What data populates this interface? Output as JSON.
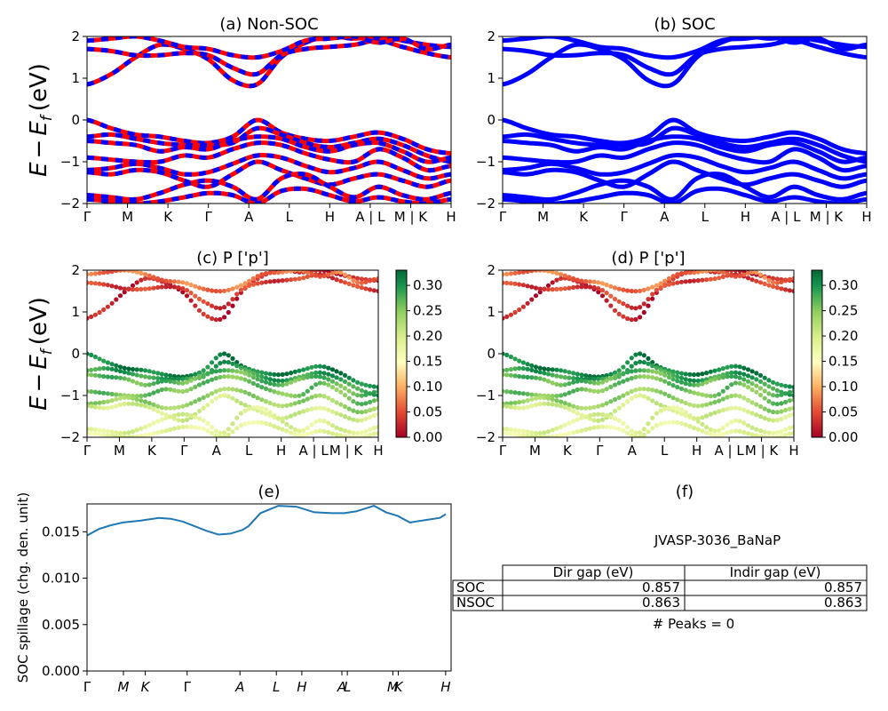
{
  "chart_data": [
    {
      "id": "a",
      "type": "line",
      "title": "(a) Non-SOC",
      "ylabel_parts": [
        "E",
        "−",
        "E",
        "f",
        "(eV)"
      ],
      "ylim": [
        -2,
        2
      ],
      "yticks": [
        "2",
        "1",
        "0",
        "−1",
        "−2"
      ],
      "xticks": [
        "Γ",
        "M",
        "K",
        "Γ",
        "A",
        "L",
        "H",
        "A | L",
        "M | K",
        "H"
      ],
      "series_colors": [
        "#ff0000",
        "#0000ff"
      ],
      "bands": [
        {
          "y": [
            0.85,
            1.1,
            1.5,
            1.8,
            1.7,
            1.45,
            0.95,
            0.85,
            1.5,
            1.85,
            2.0,
            1.95,
            2.0,
            1.9,
            1.8,
            1.75
          ]
        },
        {
          "y": [
            1.7,
            1.65,
            1.55,
            1.55,
            1.6,
            1.55,
            1.25,
            1.1,
            1.55,
            1.7,
            1.75,
            1.8,
            1.9,
            1.75,
            1.6,
            1.5
          ]
        },
        {
          "y": [
            1.9,
            1.95,
            2.0,
            1.9,
            1.75,
            1.7,
            1.55,
            1.5,
            1.65,
            1.9,
            1.95,
            2.0,
            1.85,
            1.95,
            1.7,
            1.8
          ]
        },
        {
          "y": [
            0.0,
            -0.2,
            -0.35,
            -0.4,
            -0.5,
            -0.55,
            -0.4,
            0.0,
            -0.3,
            -0.45,
            -0.5,
            -0.4,
            -0.3,
            -0.45,
            -0.7,
            -0.8
          ]
        },
        {
          "y": [
            -0.4,
            -0.35,
            -0.45,
            -0.55,
            -0.6,
            -0.6,
            -0.55,
            -0.2,
            -0.35,
            -0.55,
            -0.65,
            -0.55,
            -0.45,
            -0.6,
            -0.85,
            -1.0
          ]
        },
        {
          "y": [
            -0.5,
            -0.55,
            -0.6,
            -0.75,
            -0.65,
            -0.7,
            -0.5,
            -0.4,
            -0.45,
            -0.65,
            -0.75,
            -0.6,
            -0.55,
            -0.75,
            -1.0,
            -0.9
          ]
        },
        {
          "y": [
            -0.9,
            -0.95,
            -1.0,
            -1.0,
            -0.85,
            -0.9,
            -0.7,
            -0.55,
            -0.6,
            -0.8,
            -0.95,
            -1.0,
            -0.7,
            -0.9,
            -1.2,
            -1.1
          ]
        },
        {
          "y": [
            -1.2,
            -1.15,
            -1.05,
            -1.15,
            -1.3,
            -1.25,
            -1.05,
            -0.85,
            -0.9,
            -1.1,
            -1.25,
            -1.15,
            -1.0,
            -1.2,
            -1.4,
            -1.3
          ]
        },
        {
          "y": [
            -1.25,
            -1.3,
            -1.2,
            -1.25,
            -1.45,
            -1.6,
            -1.3,
            -1.0,
            -1.2,
            -1.4,
            -1.55,
            -1.4,
            -1.3,
            -1.45,
            -1.6,
            -1.45
          ]
        },
        {
          "y": [
            -1.8,
            -1.85,
            -1.9,
            -1.75,
            -1.55,
            -1.45,
            -1.6,
            -1.9,
            -1.4,
            -1.3,
            -1.6,
            -1.85,
            -1.6,
            -1.8,
            -1.9,
            -1.75
          ]
        },
        {
          "y": [
            -1.9,
            -1.95,
            -2.0,
            -1.95,
            -1.85,
            -1.75,
            -1.8,
            -2.0,
            -1.7,
            -1.65,
            -1.8,
            -1.95,
            -1.85,
            -1.95,
            -2.0,
            -1.9
          ]
        }
      ]
    },
    {
      "id": "b",
      "type": "line",
      "title": "(b) SOC",
      "ylim": [
        -2,
        2
      ],
      "yticks": [
        "2",
        "1",
        "0",
        "−1",
        "−2"
      ],
      "xticks": [
        "Γ",
        "M",
        "K",
        "Γ",
        "A",
        "L",
        "H",
        "A | L",
        "M | K",
        "H"
      ],
      "series_colors": [
        "#0000ff"
      ]
    },
    {
      "id": "c",
      "type": "scatter",
      "title": "(c)  P ['p']",
      "ylabel_parts": [
        "E",
        "−",
        "E",
        "f",
        "(eV)"
      ],
      "ylim": [
        -2,
        2
      ],
      "yticks": [
        "2",
        "1",
        "0",
        "−1",
        "−2"
      ],
      "xticks": [
        "Γ",
        "M",
        "K",
        "Γ",
        "A",
        "L",
        "H",
        "A | L",
        "M | K",
        "H"
      ],
      "colorbar": {
        "ticks": [
          "0.30",
          "0.25",
          "0.20",
          "0.15",
          "0.10",
          "0.05",
          "0.00"
        ],
        "range": [
          0,
          0.33
        ],
        "colormap": "RdYlGn"
      },
      "band_weights": [
        0.02,
        0.04,
        0.07,
        0.31,
        0.29,
        0.27,
        0.26,
        0.24,
        0.2,
        0.19,
        0.18
      ]
    },
    {
      "id": "d",
      "type": "scatter",
      "title": "(d) P ['p']",
      "ylim": [
        -2,
        2
      ],
      "yticks": [
        "2",
        "1",
        "0",
        "−1",
        "−2"
      ],
      "xticks": [
        "Γ",
        "M",
        "K",
        "Γ",
        "A",
        "L",
        "H",
        "A | L",
        "M | K",
        "H"
      ],
      "colorbar": {
        "ticks": [
          "0.30",
          "0.25",
          "0.20",
          "0.15",
          "0.10",
          "0.05",
          "0.00"
        ],
        "range": [
          0,
          0.33
        ],
        "colormap": "RdYlGn"
      },
      "band_weights": [
        0.02,
        0.04,
        0.07,
        0.31,
        0.29,
        0.27,
        0.26,
        0.24,
        0.2,
        0.19,
        0.18
      ]
    },
    {
      "id": "e",
      "type": "line",
      "title": "(e)",
      "ylabel": "SOC spillage (chg. den. unit)",
      "ylim": [
        0,
        0.018
      ],
      "yticks": [
        "0.000",
        "0.005",
        "0.010",
        "0.015"
      ],
      "xticks": [
        "Γ",
        "M",
        "K",
        "Γ",
        "A",
        "L",
        "H",
        "A",
        "L",
        "M",
        "K",
        "H"
      ],
      "line_color": "#1f77b4",
      "x": [
        0,
        2,
        4,
        6,
        9,
        12,
        14,
        16,
        18,
        20,
        22,
        24,
        26,
        27,
        29,
        32,
        35,
        38,
        41,
        43,
        45,
        47,
        48,
        50,
        52,
        54,
        55,
        57,
        59,
        60
      ],
      "values": [
        0.0146,
        0.0153,
        0.0157,
        0.016,
        0.0162,
        0.0165,
        0.0164,
        0.0161,
        0.0156,
        0.0151,
        0.0147,
        0.0148,
        0.0152,
        0.0156,
        0.017,
        0.0178,
        0.0177,
        0.0171,
        0.017,
        0.017,
        0.0172,
        0.0176,
        0.0178,
        0.0171,
        0.0167,
        0.016,
        0.0161,
        0.0163,
        0.0165,
        0.0169
      ]
    }
  ],
  "panel_f": {
    "title": "(f)",
    "material": "JVASP-3036_BaNaP",
    "columns": [
      "Dir gap (eV)",
      "Indir gap (eV)"
    ],
    "rows": [
      {
        "label": "SOC",
        "dir": "0.857",
        "indir": "0.857"
      },
      {
        "label": "NSOC",
        "dir": "0.863",
        "indir": "0.863"
      }
    ],
    "peaks": "# Peaks = 0"
  }
}
